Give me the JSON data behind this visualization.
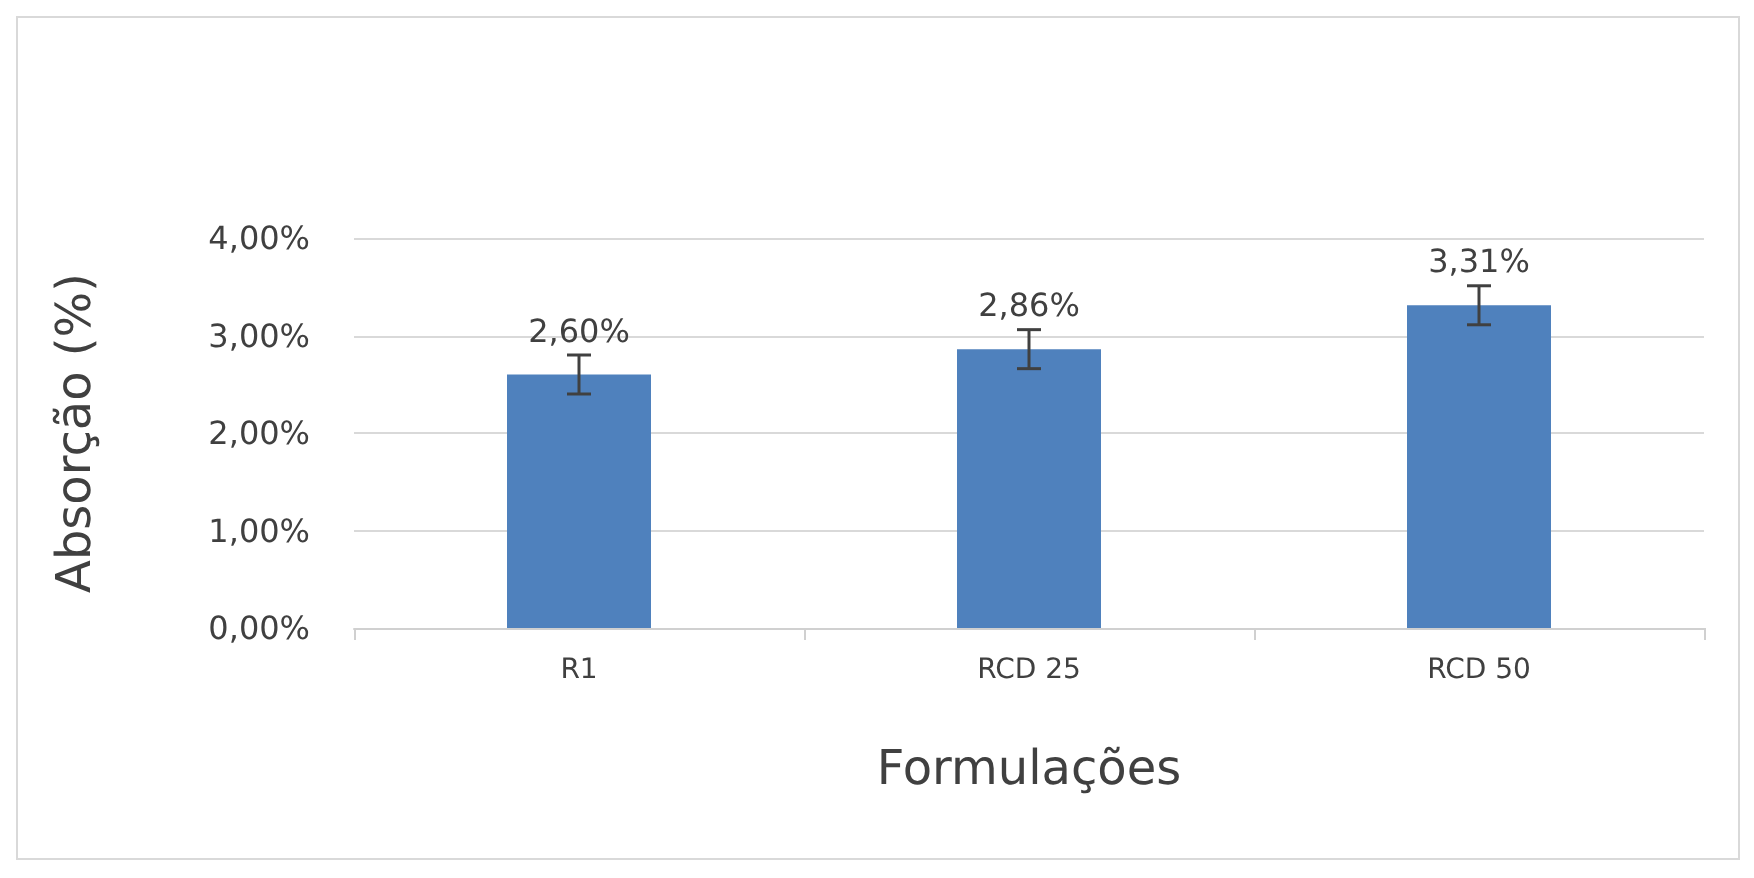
{
  "chart_data": {
    "type": "bar",
    "xlabel": "Formulações",
    "ylabel": "Absorção (%)",
    "categories": [
      "R1",
      "RCD 25",
      "RCD 50"
    ],
    "series": [
      {
        "color": "#4f81bd",
        "values": [
          2.6,
          2.86,
          3.31
        ],
        "errors": [
          0.2,
          0.2,
          0.2
        ],
        "value_labels": [
          "2,60%",
          "2,86%",
          "3,31%"
        ]
      }
    ],
    "ylim": [
      0,
      4
    ],
    "yticks": [
      {
        "value": 0,
        "label": "0,00%"
      },
      {
        "value": 1,
        "label": "1,00%"
      },
      {
        "value": 2,
        "label": "2,00%"
      },
      {
        "value": 3,
        "label": "3,00%"
      },
      {
        "value": 4,
        "label": "4,00%"
      }
    ],
    "grid": "y"
  }
}
